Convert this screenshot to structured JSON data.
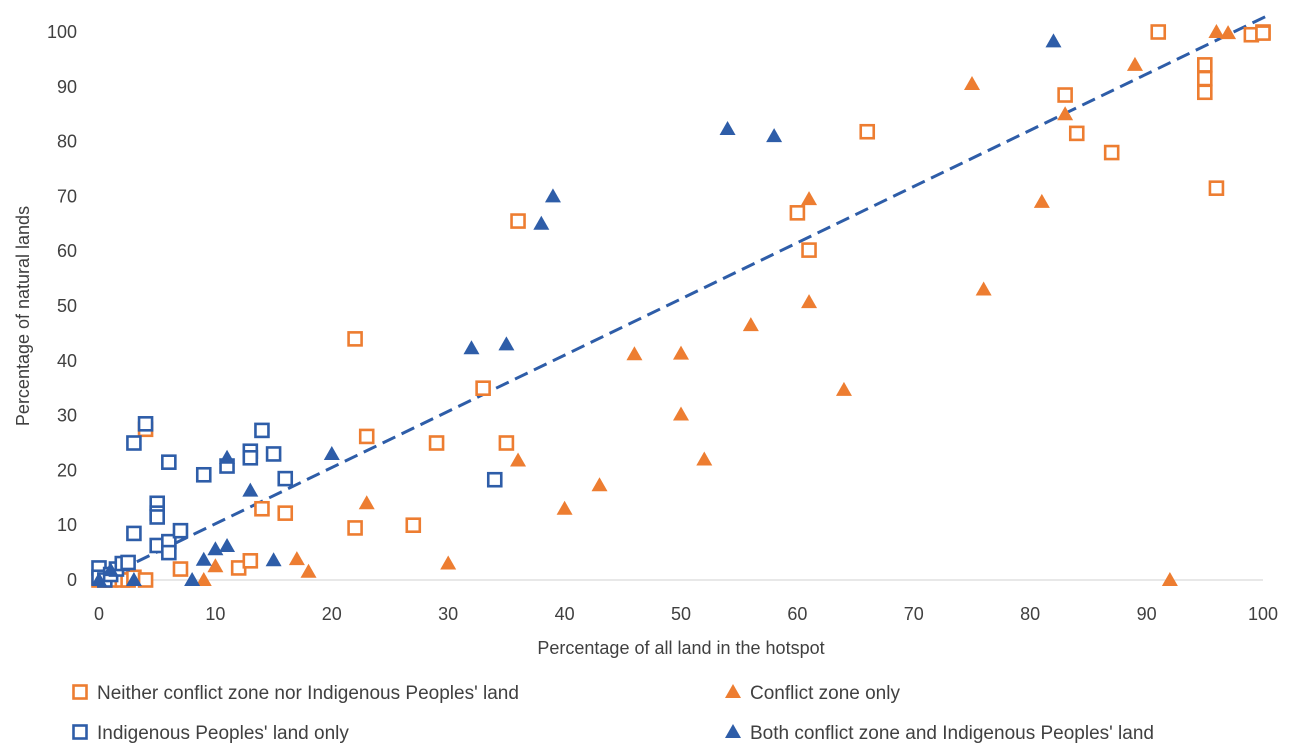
{
  "chart_data": {
    "type": "scatter",
    "xlabel": "Percentage of all land in the hotspot",
    "ylabel": "Percentage of natural lands",
    "xlim": [
      0,
      100
    ],
    "ylim": [
      0,
      100
    ],
    "xticks": [
      0,
      10,
      20,
      30,
      40,
      50,
      60,
      70,
      80,
      90,
      100
    ],
    "yticks": [
      0,
      10,
      20,
      30,
      40,
      50,
      60,
      70,
      80,
      90,
      100
    ],
    "grid": false,
    "legend_position": "bottom",
    "trendline": {
      "style": "dashed",
      "color": "#2E5DA8",
      "x": [
        0,
        100.4
      ],
      "y": [
        0,
        103
      ]
    },
    "series": [
      {
        "name": "Neither conflict zone nor Indigenous Peoples' land",
        "marker": "square-open",
        "color": "#ED7D31",
        "points": [
          [
            0,
            0
          ],
          [
            0.5,
            0
          ],
          [
            1,
            0
          ],
          [
            2,
            0
          ],
          [
            2.5,
            0
          ],
          [
            3,
            0.5
          ],
          [
            4,
            0
          ],
          [
            4,
            27.5
          ],
          [
            7,
            2
          ],
          [
            12,
            2.2
          ],
          [
            13,
            3.5
          ],
          [
            14,
            13
          ],
          [
            16,
            12.2
          ],
          [
            22,
            44
          ],
          [
            22,
            9.5
          ],
          [
            23,
            26.2
          ],
          [
            27,
            10
          ],
          [
            29,
            25
          ],
          [
            33,
            35
          ],
          [
            35,
            25
          ],
          [
            36,
            65.5
          ],
          [
            60,
            67
          ],
          [
            61,
            60.2
          ],
          [
            66,
            81.8
          ],
          [
            83,
            88.5
          ],
          [
            84,
            81.5
          ],
          [
            87,
            78
          ],
          [
            91,
            100
          ],
          [
            95,
            94
          ],
          [
            95,
            91.5
          ],
          [
            95,
            89
          ],
          [
            96,
            71.5
          ],
          [
            99,
            99.5
          ],
          [
            100,
            100
          ],
          [
            100,
            99.8
          ]
        ]
      },
      {
        "name": "Conflict zone only",
        "marker": "triangle",
        "color": "#ED7D31",
        "points": [
          [
            9,
            0
          ],
          [
            10,
            2.5
          ],
          [
            17,
            3.8
          ],
          [
            18,
            1.5
          ],
          [
            23,
            14
          ],
          [
            30,
            3
          ],
          [
            36,
            21.8
          ],
          [
            40,
            13
          ],
          [
            43,
            17.3
          ],
          [
            46,
            41.2
          ],
          [
            50,
            41.3
          ],
          [
            50,
            30.2
          ],
          [
            52,
            22
          ],
          [
            56,
            46.5
          ],
          [
            61,
            69.5
          ],
          [
            61,
            50.7
          ],
          [
            64,
            34.7
          ],
          [
            75,
            90.5
          ],
          [
            76,
            53
          ],
          [
            81,
            69
          ],
          [
            83,
            85
          ],
          [
            89,
            94
          ],
          [
            92,
            0
          ],
          [
            96,
            100
          ],
          [
            97,
            99.8
          ]
        ]
      },
      {
        "name": "Indigenous Peoples' land only",
        "marker": "square-open",
        "color": "#2E5DA8",
        "points": [
          [
            0,
            2.2
          ],
          [
            0,
            0.5
          ],
          [
            0.5,
            0
          ],
          [
            1,
            1
          ],
          [
            1.5,
            2
          ],
          [
            2,
            3
          ],
          [
            2.5,
            3.2
          ],
          [
            3,
            25
          ],
          [
            3,
            8.5
          ],
          [
            4,
            28.5
          ],
          [
            5,
            14
          ],
          [
            5,
            12.2
          ],
          [
            5,
            11.5
          ],
          [
            5,
            6.3
          ],
          [
            6,
            21.5
          ],
          [
            6,
            7
          ],
          [
            6,
            5
          ],
          [
            7,
            9
          ],
          [
            9,
            19.2
          ],
          [
            11,
            20.8
          ],
          [
            13,
            23.5
          ],
          [
            13,
            22.3
          ],
          [
            14,
            27.3
          ],
          [
            15,
            23
          ],
          [
            16,
            18.5
          ],
          [
            34,
            18.3
          ]
        ]
      },
      {
        "name": "Both conflict zone and Indigenous Peoples' land",
        "marker": "triangle",
        "color": "#2E5DA8",
        "points": [
          [
            0,
            0
          ],
          [
            1,
            1.8
          ],
          [
            3,
            0
          ],
          [
            8,
            0
          ],
          [
            9,
            3.7
          ],
          [
            10,
            5.6
          ],
          [
            11,
            6.2
          ],
          [
            11,
            22.3
          ],
          [
            13,
            16.3
          ],
          [
            15,
            3.6
          ],
          [
            20,
            23
          ],
          [
            32,
            42.3
          ],
          [
            35,
            43
          ],
          [
            38,
            65
          ],
          [
            39,
            70
          ],
          [
            54,
            82.3
          ],
          [
            58,
            81
          ],
          [
            82,
            98.3
          ]
        ]
      }
    ]
  }
}
